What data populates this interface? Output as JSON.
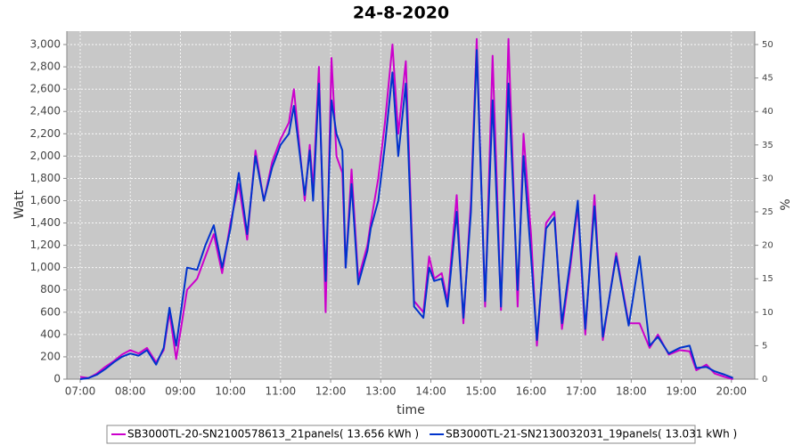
{
  "chart_data": {
    "type": "line",
    "title": "24-8-2020",
    "x_label": "time",
    "y_label": "Watt",
    "y2_label": "%",
    "x": [
      "07:00",
      "07:10",
      "07:20",
      "07:30",
      "07:40",
      "07:50",
      "08:00",
      "08:10",
      "08:20",
      "08:31",
      "08:40",
      "08:47",
      "08:55",
      "09:08",
      "09:20",
      "09:30",
      "09:40",
      "09:50",
      "10:00",
      "10:10",
      "10:20",
      "10:30",
      "10:40",
      "10:50",
      "11:00",
      "11:10",
      "11:16",
      "11:29",
      "11:35",
      "11:39",
      "11:46",
      "11:54",
      "12:01",
      "12:07",
      "12:14",
      "12:18",
      "12:25",
      "12:33",
      "12:44",
      "12:48",
      "12:57",
      "13:05",
      "13:14",
      "13:21",
      "13:30",
      "13:40",
      "13:51",
      "13:58",
      "14:04",
      "14:13",
      "14:20",
      "14:31",
      "14:39",
      "14:48",
      "14:55",
      "15:05",
      "15:14",
      "15:24",
      "15:33",
      "15:44",
      "15:51",
      "16:00",
      "16:07",
      "16:18",
      "16:28",
      "16:37",
      "16:47",
      "16:56",
      "17:05",
      "17:16",
      "17:26",
      "17:42",
      "17:57",
      "18:10",
      "18:22",
      "18:32",
      "18:45",
      "18:58",
      "19:10",
      "19:18",
      "19:30",
      "19:40",
      "19:52",
      "20:02"
    ],
    "series": [
      {
        "name": "SB3000TL-20-SN2100578613_21panels( 13.656 kWh )",
        "color": "#cc00cc",
        "values": [
          20,
          10,
          50,
          110,
          160,
          220,
          260,
          230,
          280,
          150,
          260,
          600,
          180,
          800,
          900,
          1100,
          1300,
          950,
          1400,
          1750,
          1250,
          2050,
          1600,
          1950,
          2150,
          2300,
          2600,
          1600,
          2100,
          1700,
          2800,
          600,
          2880,
          2000,
          1850,
          1000,
          1880,
          900,
          1200,
          1400,
          1800,
          2300,
          3000,
          2200,
          2850,
          700,
          600,
          1100,
          900,
          950,
          700,
          1650,
          500,
          1600,
          3050,
          650,
          2900,
          620,
          3050,
          650,
          2200,
          1300,
          300,
          1400,
          1500,
          450,
          1000,
          1550,
          400,
          1650,
          350,
          1130,
          500,
          500,
          280,
          400,
          220,
          260,
          250,
          80,
          130,
          50,
          20,
          0
        ]
      },
      {
        "name": "SB3000TL-21-SN2130032031_19panels( 13.031 kWh )",
        "color": "#0033cc",
        "values": [
          0,
          10,
          40,
          90,
          150,
          200,
          230,
          210,
          260,
          130,
          280,
          640,
          300,
          1000,
          980,
          1200,
          1380,
          1000,
          1350,
          1850,
          1300,
          2000,
          1600,
          1900,
          2100,
          2200,
          2450,
          1650,
          2050,
          1600,
          2650,
          880,
          2500,
          2200,
          2050,
          1000,
          1750,
          850,
          1150,
          1350,
          1600,
          2100,
          2750,
          2000,
          2650,
          650,
          550,
          1000,
          880,
          900,
          650,
          1500,
          550,
          1500,
          2950,
          700,
          2500,
          650,
          2650,
          800,
          2000,
          1100,
          350,
          1350,
          1450,
          500,
          1050,
          1600,
          450,
          1550,
          380,
          1100,
          480,
          1100,
          300,
          380,
          230,
          280,
          300,
          100,
          110,
          70,
          40,
          10
        ]
      }
    ],
    "xlim": [
      "06:44",
      "20:28"
    ],
    "xticks": [
      "07:00",
      "08:00",
      "09:00",
      "10:00",
      "11:00",
      "12:00",
      "13:00",
      "14:00",
      "15:00",
      "16:00",
      "17:00",
      "18:00",
      "19:00",
      "20:00"
    ],
    "ylim": [
      0,
      3120
    ],
    "yticks": [
      0,
      200,
      400,
      600,
      800,
      {
        "value": 1000,
        "label": "1,000"
      },
      {
        "value": 1200,
        "label": "1,200"
      },
      {
        "value": 1400,
        "label": "1,400"
      },
      {
        "value": 1600,
        "label": "1,600"
      },
      {
        "value": 1800,
        "label": "1,800"
      },
      {
        "value": 2000,
        "label": "2,000"
      },
      {
        "value": 2200,
        "label": "2,200"
      },
      {
        "value": 2400,
        "label": "2,400"
      },
      {
        "value": 2600,
        "label": "2,600"
      },
      {
        "value": 2800,
        "label": "2,800"
      },
      {
        "value": 3000,
        "label": "3,000"
      }
    ],
    "y2lim": [
      0,
      52
    ],
    "y2ticks": [
      0,
      5,
      10,
      15,
      20,
      25,
      30,
      35,
      40,
      45,
      50
    ],
    "grid": true,
    "legend": "bottom"
  }
}
